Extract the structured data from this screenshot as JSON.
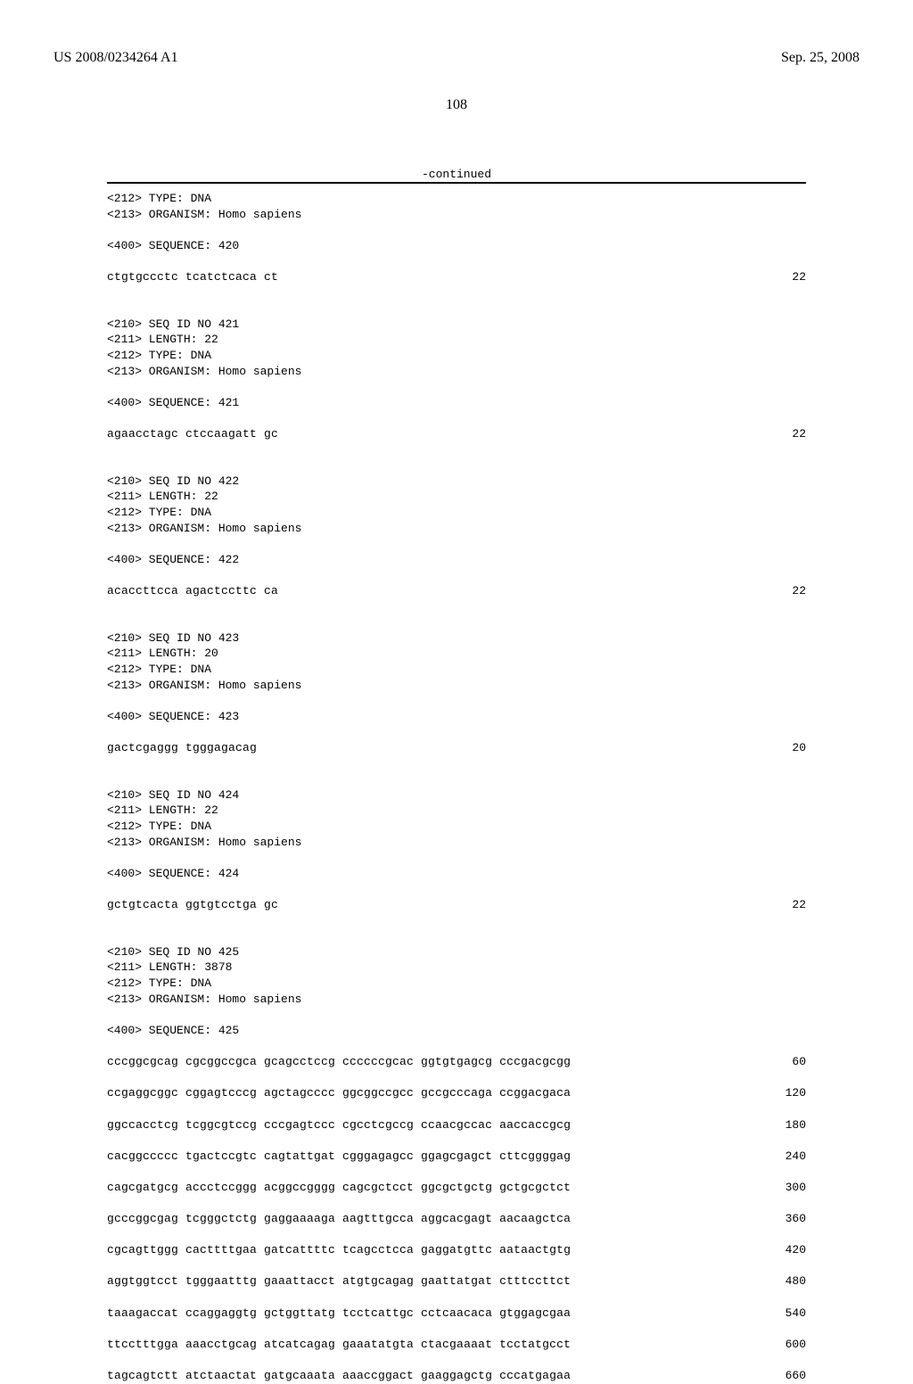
{
  "header": {
    "left": "US 2008/0234264 A1",
    "right": "Sep. 25, 2008"
  },
  "page_number": "108",
  "continued": "-continued",
  "entries": [
    {
      "meta": [
        "<212> TYPE: DNA",
        "<213> ORGANISM: Homo sapiens"
      ],
      "seqlabel": "<400> SEQUENCE: 420",
      "seqs": [
        {
          "seq": "ctgtgccctc tcatctcaca ct",
          "num": "22"
        }
      ]
    },
    {
      "meta": [
        "<210> SEQ ID NO 421",
        "<211> LENGTH: 22",
        "<212> TYPE: DNA",
        "<213> ORGANISM: Homo sapiens"
      ],
      "seqlabel": "<400> SEQUENCE: 421",
      "seqs": [
        {
          "seq": "agaacctagc ctccaagatt gc",
          "num": "22"
        }
      ]
    },
    {
      "meta": [
        "<210> SEQ ID NO 422",
        "<211> LENGTH: 22",
        "<212> TYPE: DNA",
        "<213> ORGANISM: Homo sapiens"
      ],
      "seqlabel": "<400> SEQUENCE: 422",
      "seqs": [
        {
          "seq": "acaccttcca agactccttc ca",
          "num": "22"
        }
      ]
    },
    {
      "meta": [
        "<210> SEQ ID NO 423",
        "<211> LENGTH: 20",
        "<212> TYPE: DNA",
        "<213> ORGANISM: Homo sapiens"
      ],
      "seqlabel": "<400> SEQUENCE: 423",
      "seqs": [
        {
          "seq": "gactcgaggg tgggagacag",
          "num": "20"
        }
      ]
    },
    {
      "meta": [
        "<210> SEQ ID NO 424",
        "<211> LENGTH: 22",
        "<212> TYPE: DNA",
        "<213> ORGANISM: Homo sapiens"
      ],
      "seqlabel": "<400> SEQUENCE: 424",
      "seqs": [
        {
          "seq": "gctgtcacta ggtgtcctga gc",
          "num": "22"
        }
      ]
    },
    {
      "meta": [
        "<210> SEQ ID NO 425",
        "<211> LENGTH: 3878",
        "<212> TYPE: DNA",
        "<213> ORGANISM: Homo sapiens"
      ],
      "seqlabel": "<400> SEQUENCE: 425",
      "seqs": [
        {
          "seq": "cccggcgcag cgcggccgca gcagcctccg ccccccgcac ggtgtgagcg cccgacgcgg",
          "num": "60"
        },
        {
          "seq": "ccgaggcggc cggagtcccg agctagcccc ggcggccgcc gccgcccaga ccggacgaca",
          "num": "120"
        },
        {
          "seq": "ggccacctcg tcggcgtccg cccgagtccc cgcctcgccg ccaacgccac aaccaccgcg",
          "num": "180"
        },
        {
          "seq": "cacggccccc tgactccgtc cagtattgat cgggagagcc ggagcgagct cttcggggag",
          "num": "240"
        },
        {
          "seq": "cagcgatgcg accctccggg acggccgggg cagcgctcct ggcgctgctg gctgcgctct",
          "num": "300"
        },
        {
          "seq": "gcccggcgag tcgggctctg gaggaaaaga aagtttgcca aggcacgagt aacaagctca",
          "num": "360"
        },
        {
          "seq": "cgcagttggg cacttttgaa gatcattttc tcagcctcca gaggatgttc aataactgtg",
          "num": "420"
        },
        {
          "seq": "aggtggtcct tgggaatttg gaaattacct atgtgcagag gaattatgat ctttccttct",
          "num": "480"
        },
        {
          "seq": "taaagaccat ccaggaggtg gctggttatg tcctcattgc cctcaacaca gtggagcgaa",
          "num": "540"
        },
        {
          "seq": "ttcctttgga aaacctgcag atcatcagag gaaatatgta ctacgaaaat tcctatgcct",
          "num": "600"
        },
        {
          "seq": "tagcagtctt atctaactat gatgcaaata aaaccggact gaaggagctg cccatgagaa",
          "num": "660"
        }
      ]
    }
  ]
}
